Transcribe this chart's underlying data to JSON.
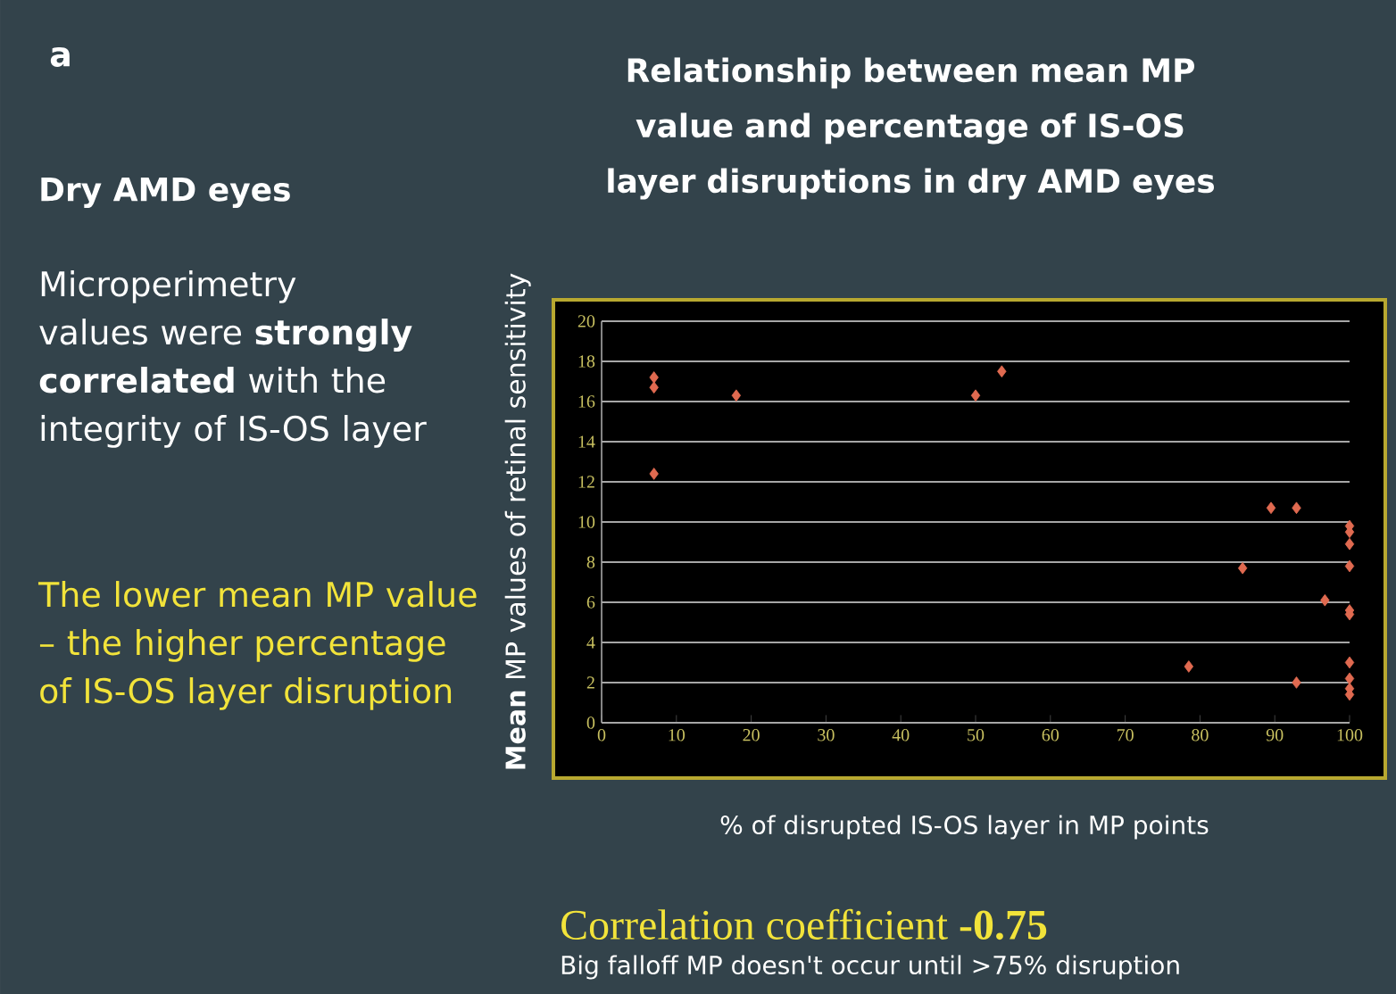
{
  "chart_data": {
    "type": "scatter",
    "title": "Relationship between mean MP value and percentage of IS-OS layer disruptions in dry AMD eyes",
    "xlabel": "% of disrupted IS-OS layer in MP points",
    "ylabel": "**Mean** MP values of retinal sensitivity",
    "annotations": [
      "a",
      "Dry AMD eyes",
      "Microperimetry values were **strongly correlated** with the integrity of  IS-OS layer",
      "The lower mean MP value – the higher percentage of IS-OS layer disruption",
      "Correlation coefficient **-0.75**",
      "Big falloff  MP doesn't occur until >75% disruption"
    ],
    "x": [
      7,
      7,
      7,
      18,
      50,
      53.5,
      78.5,
      85.7,
      89.5,
      92.9,
      92.9,
      96.7,
      100,
      100,
      100,
      100,
      100,
      100,
      100,
      100,
      100,
      100
    ],
    "series": [
      {
        "color": "#e06a50",
        "values": [
          17.2,
          16.7,
          12.4,
          16.3,
          16.3,
          17.5,
          2.8,
          7.7,
          10.7,
          10.7,
          2.0,
          6.1,
          9.8,
          9.5,
          8.9,
          7.8,
          5.6,
          5.4,
          3.0,
          2.2,
          1.7,
          1.4
        ]
      }
    ],
    "xlim": [
      0,
      100
    ],
    "ylim": [
      0,
      20
    ],
    "xticks": [
      0,
      10,
      20,
      30,
      40,
      50,
      60,
      70,
      80,
      90,
      100
    ],
    "yticks": [
      0,
      2,
      4,
      6,
      8,
      10,
      12,
      14,
      16,
      18,
      20
    ],
    "grid": "y",
    "marker": "diamond"
  }
}
